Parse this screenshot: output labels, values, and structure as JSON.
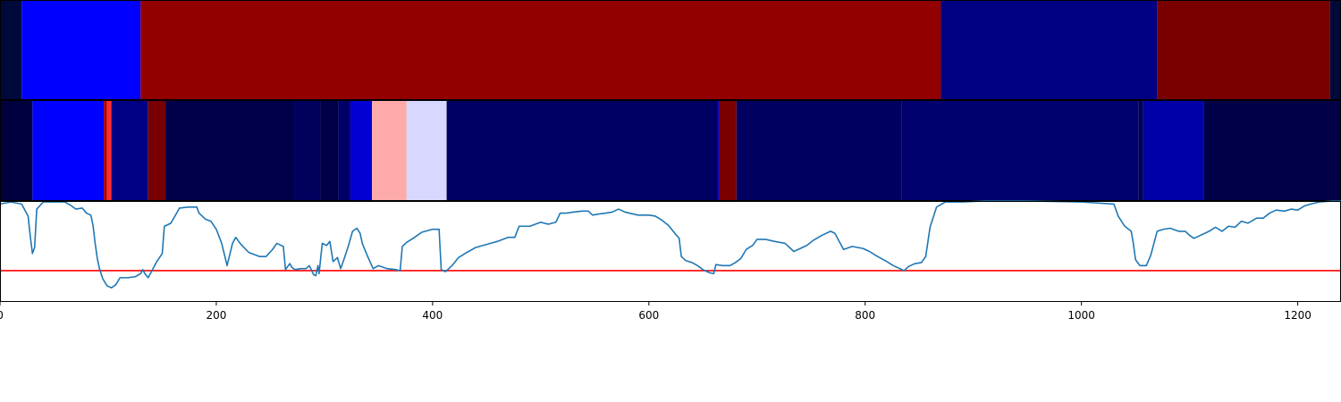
{
  "chart_data": [
    {
      "type": "heatmap",
      "xlim": [
        0,
        1240
      ],
      "colormap": "seismic",
      "segments": [
        {
          "x0": 0,
          "x1": 20,
          "color": "#000a3a"
        },
        {
          "x0": 20,
          "x1": 130,
          "color": "#0000ff"
        },
        {
          "x0": 130,
          "x1": 870,
          "color": "#920000"
        },
        {
          "x0": 870,
          "x1": 1070,
          "color": "#000083"
        },
        {
          "x0": 1070,
          "x1": 1230,
          "color": "#7a0000"
        },
        {
          "x0": 1230,
          "x1": 1240,
          "color": "#000a3a"
        }
      ]
    },
    {
      "type": "heatmap",
      "xlim": [
        0,
        1240
      ],
      "colormap": "seismic",
      "segments": [
        {
          "x0": 0,
          "x1": 30,
          "color": "#00003f"
        },
        {
          "x0": 30,
          "x1": 96,
          "color": "#0000ff"
        },
        {
          "x0": 96,
          "x1": 99,
          "color": "#b00000"
        },
        {
          "x0": 99,
          "x1": 103,
          "color": "#ff2d2d"
        },
        {
          "x0": 103,
          "x1": 105,
          "color": "#000088"
        },
        {
          "x0": 105,
          "x1": 137,
          "color": "#000085"
        },
        {
          "x0": 137,
          "x1": 153,
          "color": "#780000"
        },
        {
          "x0": 153,
          "x1": 272,
          "color": "#00004a"
        },
        {
          "x0": 272,
          "x1": 296,
          "color": "#00005c"
        },
        {
          "x0": 296,
          "x1": 313,
          "color": "#000048"
        },
        {
          "x0": 313,
          "x1": 324,
          "color": "#000068"
        },
        {
          "x0": 324,
          "x1": 344,
          "color": "#0000d2"
        },
        {
          "x0": 344,
          "x1": 376,
          "color": "#ffaaaa"
        },
        {
          "x0": 376,
          "x1": 413,
          "color": "#d7d7ff"
        },
        {
          "x0": 413,
          "x1": 663,
          "color": "#000062"
        },
        {
          "x0": 663,
          "x1": 665,
          "color": "#0000c0"
        },
        {
          "x0": 665,
          "x1": 681,
          "color": "#7a0000"
        },
        {
          "x0": 681,
          "x1": 834,
          "color": "#000060"
        },
        {
          "x0": 834,
          "x1": 1053,
          "color": "#00006e"
        },
        {
          "x0": 1053,
          "x1": 1057,
          "color": "#000050"
        },
        {
          "x0": 1057,
          "x1": 1113,
          "color": "#0000a8"
        },
        {
          "x0": 1113,
          "x1": 1240,
          "color": "#000048"
        }
      ]
    },
    {
      "type": "line",
      "xlim": [
        0,
        1240
      ],
      "ylim": [
        0,
        1
      ],
      "line_color": "#1f77b4",
      "threshold": {
        "y": 0.31,
        "color": "#ff0000"
      },
      "x_ticks": [
        0,
        200,
        400,
        600,
        800,
        1000,
        1200
      ],
      "x_tick_labels": [
        "0",
        "200",
        "400",
        "600",
        "800",
        "1000",
        "1200"
      ],
      "points": [
        [
          0,
          0.97
        ],
        [
          10,
          0.99
        ],
        [
          20,
          0.97
        ],
        [
          26,
          0.85
        ],
        [
          28,
          0.65
        ],
        [
          30,
          0.48
        ],
        [
          32,
          0.54
        ],
        [
          34,
          0.92
        ],
        [
          40,
          0.99
        ],
        [
          50,
          0.99
        ],
        [
          60,
          0.99
        ],
        [
          65,
          0.96
        ],
        [
          70,
          0.92
        ],
        [
          76,
          0.93
        ],
        [
          80,
          0.88
        ],
        [
          84,
          0.86
        ],
        [
          86,
          0.76
        ],
        [
          88,
          0.58
        ],
        [
          90,
          0.43
        ],
        [
          92,
          0.33
        ],
        [
          95,
          0.23
        ],
        [
          99,
          0.16
        ],
        [
          103,
          0.14
        ],
        [
          107,
          0.17
        ],
        [
          111,
          0.24
        ],
        [
          118,
          0.24
        ],
        [
          125,
          0.25
        ],
        [
          130,
          0.28
        ],
        [
          132,
          0.32
        ],
        [
          134,
          0.28
        ],
        [
          137,
          0.24
        ],
        [
          141,
          0.32
        ],
        [
          145,
          0.4
        ],
        [
          150,
          0.48
        ],
        [
          152,
          0.75
        ],
        [
          158,
          0.78
        ],
        [
          166,
          0.93
        ],
        [
          174,
          0.94
        ],
        [
          182,
          0.94
        ],
        [
          184,
          0.88
        ],
        [
          190,
          0.82
        ],
        [
          195,
          0.8
        ],
        [
          200,
          0.72
        ],
        [
          205,
          0.58
        ],
        [
          210,
          0.36
        ],
        [
          215,
          0.58
        ],
        [
          218,
          0.64
        ],
        [
          222,
          0.58
        ],
        [
          230,
          0.49
        ],
        [
          240,
          0.45
        ],
        [
          246,
          0.45
        ],
        [
          252,
          0.52
        ],
        [
          256,
          0.58
        ],
        [
          262,
          0.55
        ],
        [
          264,
          0.32
        ],
        [
          268,
          0.38
        ],
        [
          270,
          0.34
        ],
        [
          273,
          0.32
        ],
        [
          278,
          0.33
        ],
        [
          283,
          0.33
        ],
        [
          286,
          0.36
        ],
        [
          290,
          0.27
        ],
        [
          292,
          0.26
        ],
        [
          294,
          0.36
        ],
        [
          295,
          0.28
        ],
        [
          298,
          0.58
        ],
        [
          302,
          0.56
        ],
        [
          305,
          0.6
        ],
        [
          308,
          0.4
        ],
        [
          312,
          0.44
        ],
        [
          315,
          0.33
        ],
        [
          318,
          0.42
        ],
        [
          322,
          0.55
        ],
        [
          326,
          0.7
        ],
        [
          330,
          0.73
        ],
        [
          333,
          0.68
        ],
        [
          335,
          0.58
        ],
        [
          340,
          0.45
        ],
        [
          345,
          0.33
        ],
        [
          350,
          0.36
        ],
        [
          358,
          0.33
        ],
        [
          366,
          0.32
        ],
        [
          370,
          0.31
        ],
        [
          372,
          0.55
        ],
        [
          376,
          0.59
        ],
        [
          382,
          0.63
        ],
        [
          390,
          0.69
        ],
        [
          400,
          0.72
        ],
        [
          406,
          0.72
        ],
        [
          408,
          0.32
        ],
        [
          412,
          0.3
        ],
        [
          418,
          0.36
        ],
        [
          424,
          0.44
        ],
        [
          430,
          0.48
        ],
        [
          440,
          0.54
        ],
        [
          450,
          0.57
        ],
        [
          460,
          0.6
        ],
        [
          470,
          0.64
        ],
        [
          476,
          0.64
        ],
        [
          480,
          0.75
        ],
        [
          490,
          0.75
        ],
        [
          500,
          0.79
        ],
        [
          507,
          0.77
        ],
        [
          514,
          0.79
        ],
        [
          518,
          0.88
        ],
        [
          524,
          0.88
        ],
        [
          530,
          0.89
        ],
        [
          538,
          0.9
        ],
        [
          544,
          0.9
        ],
        [
          548,
          0.86
        ],
        [
          553,
          0.87
        ],
        [
          560,
          0.88
        ],
        [
          566,
          0.89
        ],
        [
          572,
          0.92
        ],
        [
          578,
          0.89
        ],
        [
          590,
          0.86
        ],
        [
          600,
          0.86
        ],
        [
          606,
          0.85
        ],
        [
          612,
          0.81
        ],
        [
          618,
          0.76
        ],
        [
          624,
          0.68
        ],
        [
          628,
          0.63
        ],
        [
          630,
          0.45
        ],
        [
          634,
          0.41
        ],
        [
          640,
          0.39
        ],
        [
          645,
          0.36
        ],
        [
          650,
          0.32
        ],
        [
          656,
          0.29
        ],
        [
          660,
          0.28
        ],
        [
          662,
          0.37
        ],
        [
          668,
          0.36
        ],
        [
          675,
          0.36
        ],
        [
          680,
          0.39
        ],
        [
          685,
          0.43
        ],
        [
          690,
          0.52
        ],
        [
          696,
          0.56
        ],
        [
          700,
          0.62
        ],
        [
          708,
          0.62
        ],
        [
          716,
          0.6
        ],
        [
          726,
          0.58
        ],
        [
          734,
          0.5
        ],
        [
          740,
          0.53
        ],
        [
          746,
          0.56
        ],
        [
          752,
          0.61
        ],
        [
          760,
          0.66
        ],
        [
          768,
          0.7
        ],
        [
          772,
          0.68
        ],
        [
          776,
          0.6
        ],
        [
          780,
          0.52
        ],
        [
          788,
          0.55
        ],
        [
          798,
          0.53
        ],
        [
          804,
          0.5
        ],
        [
          810,
          0.46
        ],
        [
          820,
          0.4
        ],
        [
          826,
          0.36
        ],
        [
          832,
          0.33
        ],
        [
          836,
          0.31
        ],
        [
          840,
          0.35
        ],
        [
          846,
          0.38
        ],
        [
          852,
          0.39
        ],
        [
          856,
          0.45
        ],
        [
          860,
          0.74
        ],
        [
          866,
          0.94
        ],
        [
          874,
          0.99
        ],
        [
          890,
          0.99
        ],
        [
          910,
          1.0
        ],
        [
          950,
          1.0
        ],
        [
          1000,
          0.99
        ],
        [
          1030,
          0.97
        ],
        [
          1034,
          0.85
        ],
        [
          1040,
          0.75
        ],
        [
          1046,
          0.7
        ],
        [
          1048,
          0.58
        ],
        [
          1050,
          0.42
        ],
        [
          1054,
          0.36
        ],
        [
          1060,
          0.36
        ],
        [
          1064,
          0.46
        ],
        [
          1070,
          0.7
        ],
        [
          1076,
          0.72
        ],
        [
          1082,
          0.73
        ],
        [
          1090,
          0.7
        ],
        [
          1096,
          0.7
        ],
        [
          1100,
          0.66
        ],
        [
          1104,
          0.63
        ],
        [
          1110,
          0.66
        ],
        [
          1118,
          0.7
        ],
        [
          1124,
          0.74
        ],
        [
          1130,
          0.7
        ],
        [
          1136,
          0.75
        ],
        [
          1142,
          0.74
        ],
        [
          1148,
          0.8
        ],
        [
          1154,
          0.78
        ],
        [
          1162,
          0.83
        ],
        [
          1168,
          0.83
        ],
        [
          1174,
          0.88
        ],
        [
          1180,
          0.91
        ],
        [
          1188,
          0.9
        ],
        [
          1194,
          0.92
        ],
        [
          1200,
          0.91
        ],
        [
          1206,
          0.95
        ],
        [
          1212,
          0.97
        ],
        [
          1220,
          0.99
        ],
        [
          1232,
          1.0
        ],
        [
          1240,
          1.0
        ]
      ]
    }
  ]
}
